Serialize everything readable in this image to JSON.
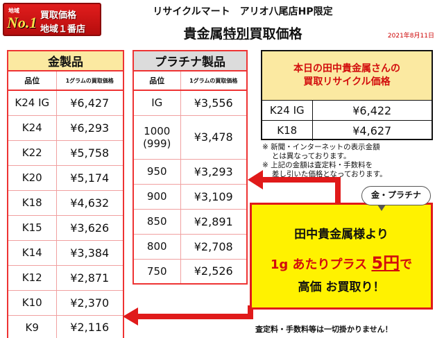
{
  "badge": {
    "small": "地域",
    "no1": "No.1",
    "line1": "買取価格",
    "line2": "地域１番店"
  },
  "header": {
    "store": "リサイクルマート　アリオ八尾店HP限定",
    "title_pre": "貴金属",
    "title_em": "特別",
    "title_post": "買取価格",
    "date": "2021年8月11日"
  },
  "gold": {
    "title": "金製品",
    "col_karat": "品位",
    "col_price": "1グラムの買取価格",
    "rows": [
      {
        "k": "K24 IG",
        "p": "¥6,427"
      },
      {
        "k": "K24",
        "p": "¥6,293"
      },
      {
        "k": "K22",
        "p": "¥5,758"
      },
      {
        "k": "K20",
        "p": "¥5,174"
      },
      {
        "k": "K18",
        "p": "¥4,632"
      },
      {
        "k": "K15",
        "p": "¥3,626"
      },
      {
        "k": "K14",
        "p": "¥3,384"
      },
      {
        "k": "K12",
        "p": "¥2,871"
      },
      {
        "k": "K10",
        "p": "¥2,370"
      },
      {
        "k": "K9",
        "p": "¥2,116"
      }
    ]
  },
  "platinum": {
    "title": "プラチナ製品",
    "col_karat": "品位",
    "col_price": "1グラムの買取価格",
    "rows": [
      {
        "k": "IG",
        "p": "¥3,556"
      },
      {
        "k": "1000",
        "k2": "(999)",
        "p": "¥3,478"
      },
      {
        "k": "950",
        "p": "¥3,293"
      },
      {
        "k": "900",
        "p": "¥3,109"
      },
      {
        "k": "850",
        "p": "¥2,891"
      },
      {
        "k": "800",
        "p": "¥2,708"
      },
      {
        "k": "750",
        "p": "¥2,526"
      }
    ]
  },
  "today": {
    "line1": "本日の田中貴金属さんの",
    "line2": "買取リサイクル価格",
    "rows": [
      {
        "k": "K24 IG",
        "p": "¥6,422"
      },
      {
        "k": "K18",
        "p": "¥4,627"
      }
    ]
  },
  "notes": {
    "n1": "※ 新聞・インターネットの表示金額\n　 とは異なっております。",
    "n2": "※ 上記の金額は査定料・手数料を\n　 差し引いた価格となっております。"
  },
  "bubble": "金・プラチナ",
  "promo": {
    "line1": "田中貴金属様より",
    "l2a": "1g あたりプラス ",
    "l2b": "5円",
    "l2c": "で",
    "line3": "高価 お買取り！"
  },
  "footer": "査定料・手数料等は一切掛かりません！",
  "colors": {
    "accent_red": "#e01a1a",
    "promo_yellow": "#fff200",
    "header_gold": "#fbe9a1",
    "header_platinum": "#dcdcdc"
  }
}
